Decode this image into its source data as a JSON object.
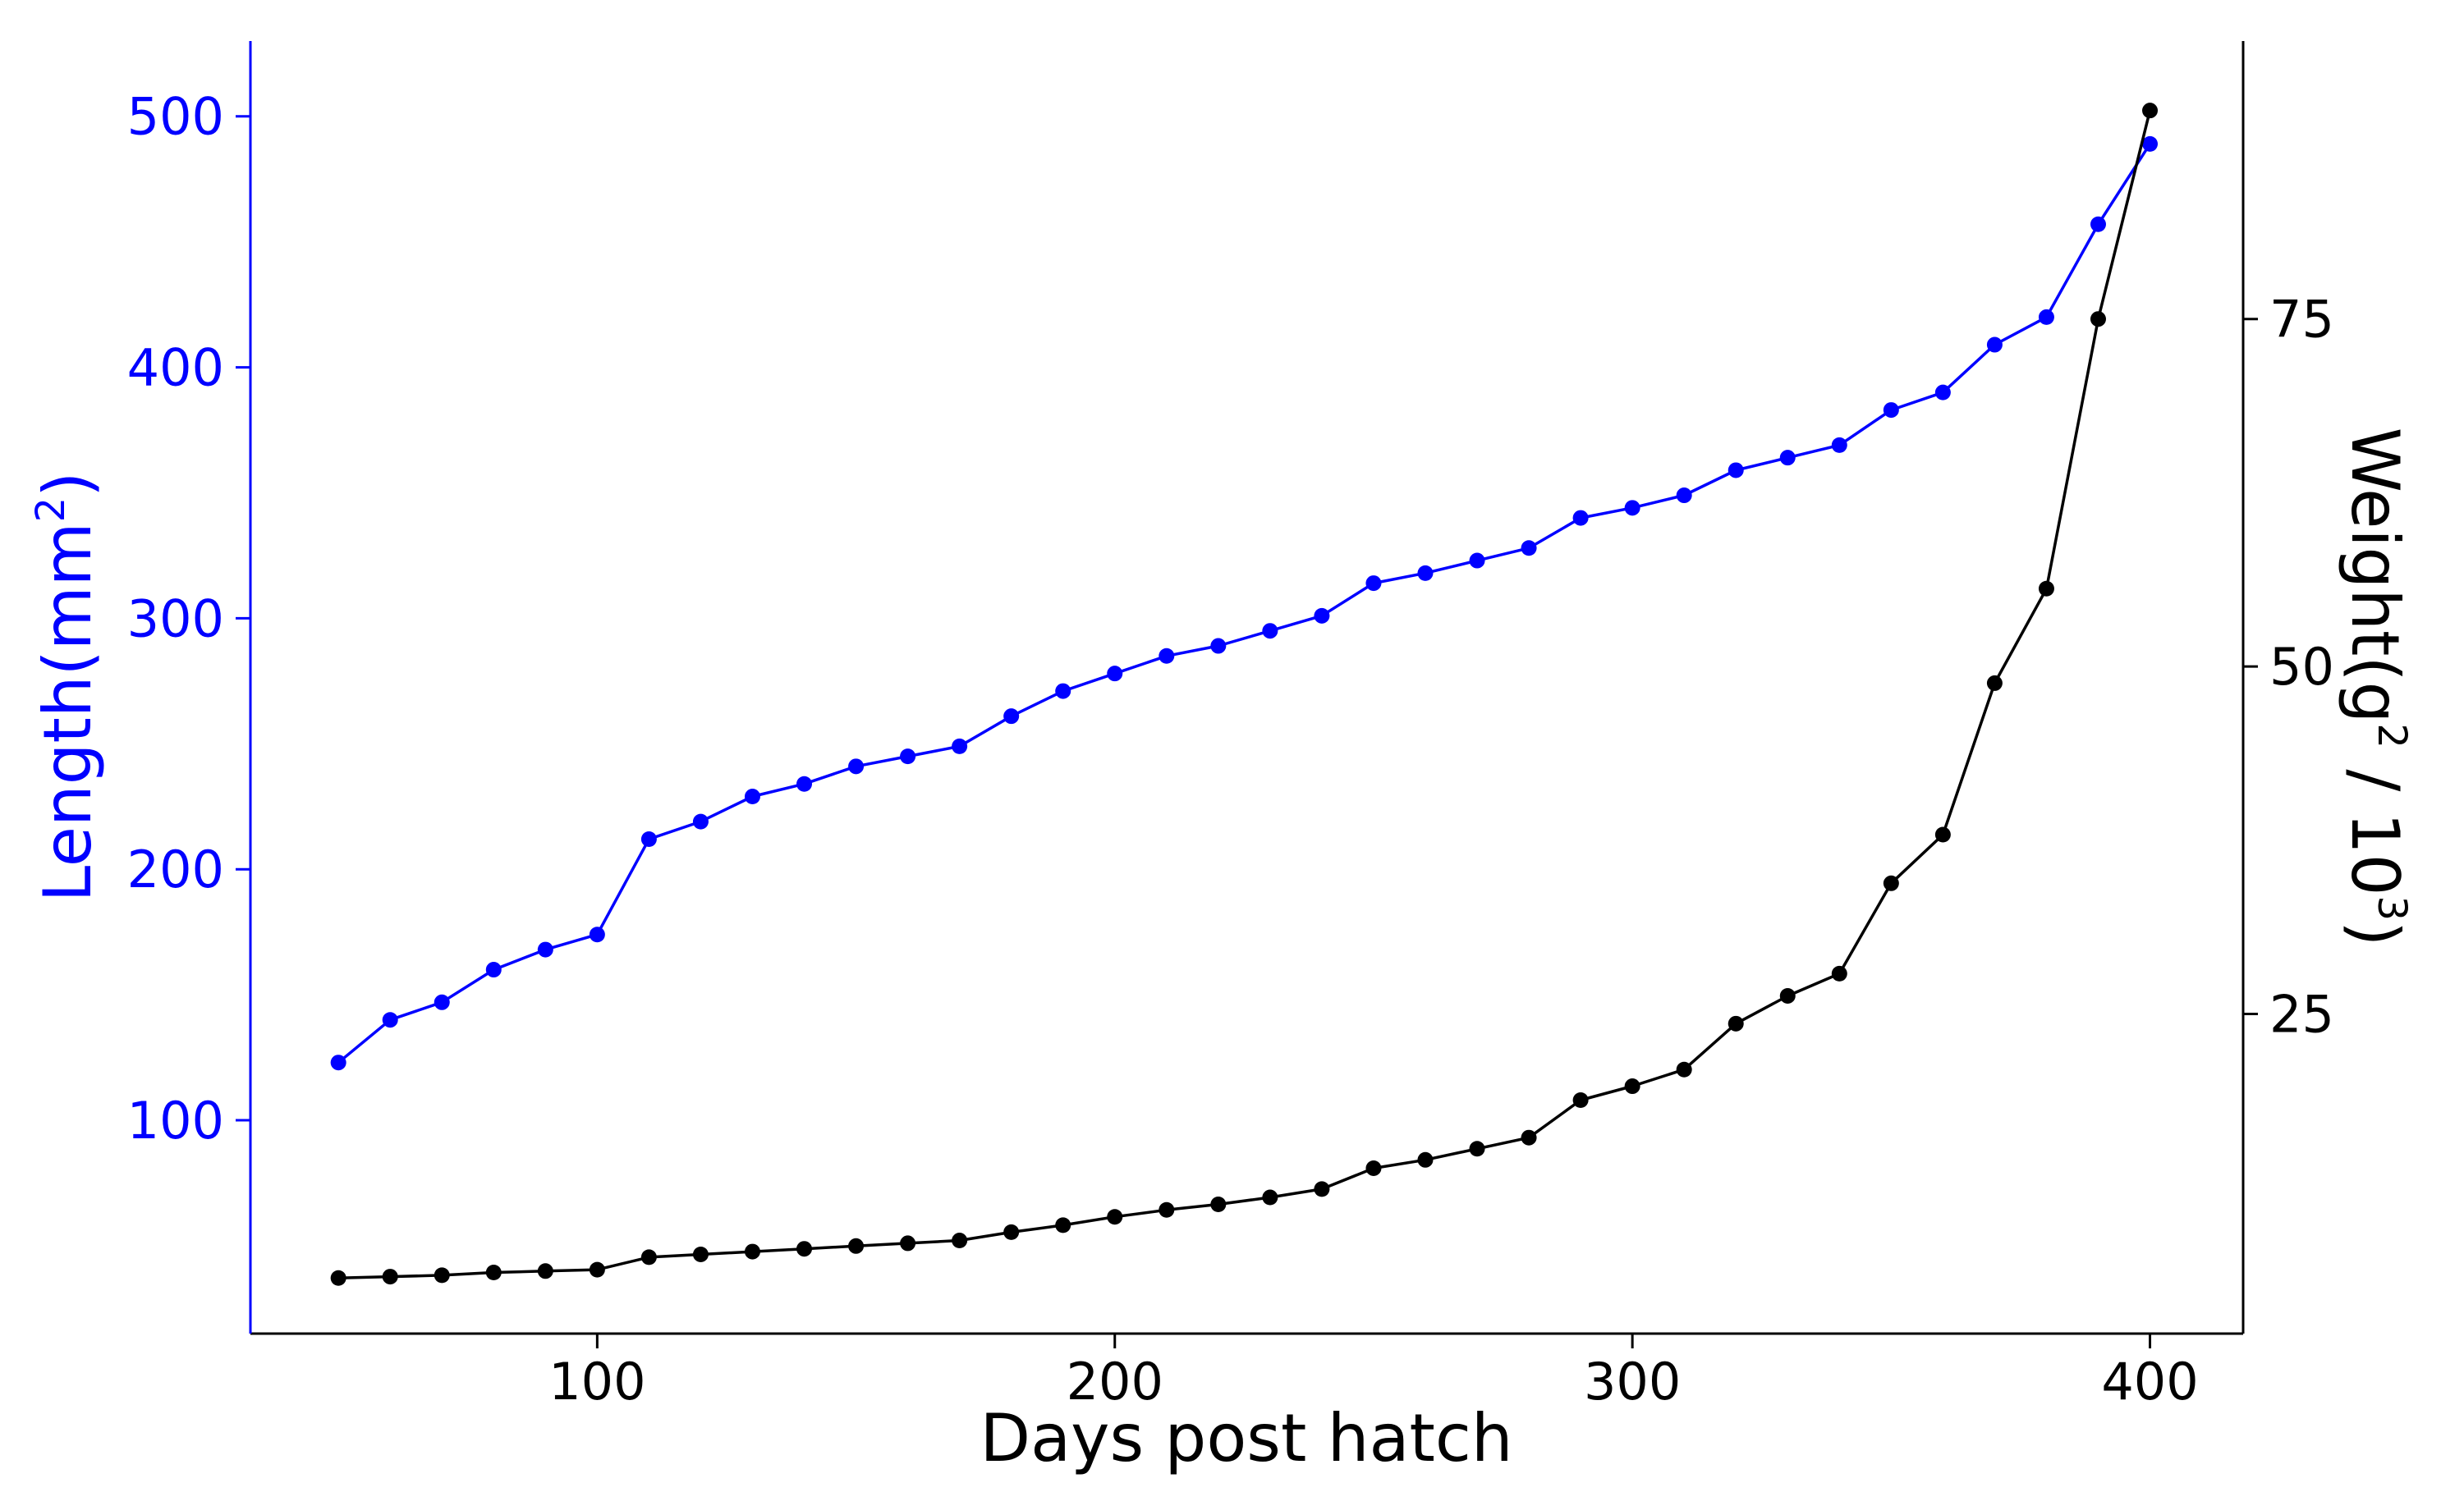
{
  "chart_data": {
    "type": "line",
    "title": "",
    "xlabel": "Days post hatch",
    "ylabel": {
      "base": "Length(mm",
      "superscript": "2",
      "close": ")",
      "color": "#0000ff"
    },
    "y2label": {
      "part1": "Weight(g",
      "sup1": "2",
      "part2": " / 10",
      "sup2": "3",
      "part3": ")",
      "color": "#000000"
    },
    "xlim": [
      33,
      418
    ],
    "ylim": [
      15,
      530
    ],
    "y2lim": [
      2,
      95
    ],
    "xticks": [
      100,
      200,
      300,
      400
    ],
    "yticks": [
      100,
      200,
      300,
      400,
      500
    ],
    "y2ticks": [
      25,
      50,
      75
    ],
    "grid": false,
    "x": [
      50,
      60,
      70,
      80,
      90,
      100,
      110,
      120,
      130,
      140,
      150,
      160,
      170,
      180,
      190,
      200,
      210,
      220,
      230,
      240,
      250,
      260,
      270,
      280,
      290,
      300,
      310,
      320,
      330,
      340,
      350,
      360,
      370,
      380,
      390,
      400
    ],
    "series": [
      {
        "name": "Length",
        "axis": "left",
        "color": "#0000ff",
        "values": [
          123,
          140,
          147,
          160,
          168,
          174,
          212,
          219,
          229,
          234,
          241,
          245,
          249,
          261,
          271,
          278,
          285,
          289,
          295,
          301,
          314,
          318,
          323,
          328,
          340,
          344,
          349,
          359,
          364,
          369,
          383,
          390,
          409,
          420,
          457,
          489
        ]
      },
      {
        "name": "Weight",
        "axis": "right",
        "color": "#000000",
        "values": [
          6.0,
          6.1,
          6.2,
          6.4,
          6.5,
          6.6,
          7.5,
          7.7,
          7.9,
          8.1,
          8.3,
          8.5,
          8.7,
          9.3,
          9.8,
          10.4,
          10.9,
          11.3,
          11.8,
          12.4,
          13.9,
          14.5,
          15.3,
          16.1,
          18.8,
          19.8,
          21.0,
          24.3,
          26.3,
          27.9,
          34.4,
          37.9,
          48.8,
          55.6,
          75.0,
          90.0
        ]
      }
    ]
  }
}
